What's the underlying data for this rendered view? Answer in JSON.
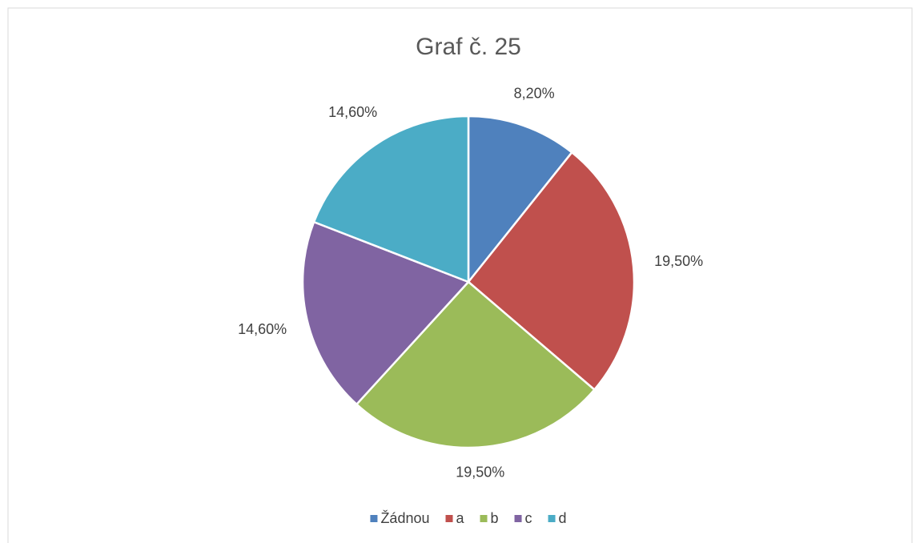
{
  "chart_data": {
    "type": "pie",
    "title": "Graf č. 25",
    "categories": [
      "Žádnou",
      "a",
      "b",
      "c",
      "d"
    ],
    "values": [
      8.2,
      19.5,
      19.5,
      14.6,
      14.6
    ],
    "value_labels": [
      "8,20%",
      "19,50%",
      "19,50%",
      "14,60%",
      "14,60%"
    ],
    "colors": [
      "#4f81bd",
      "#c0504d",
      "#9bbb59",
      "#8064a2",
      "#4bacc6"
    ],
    "legend": "bottom"
  }
}
